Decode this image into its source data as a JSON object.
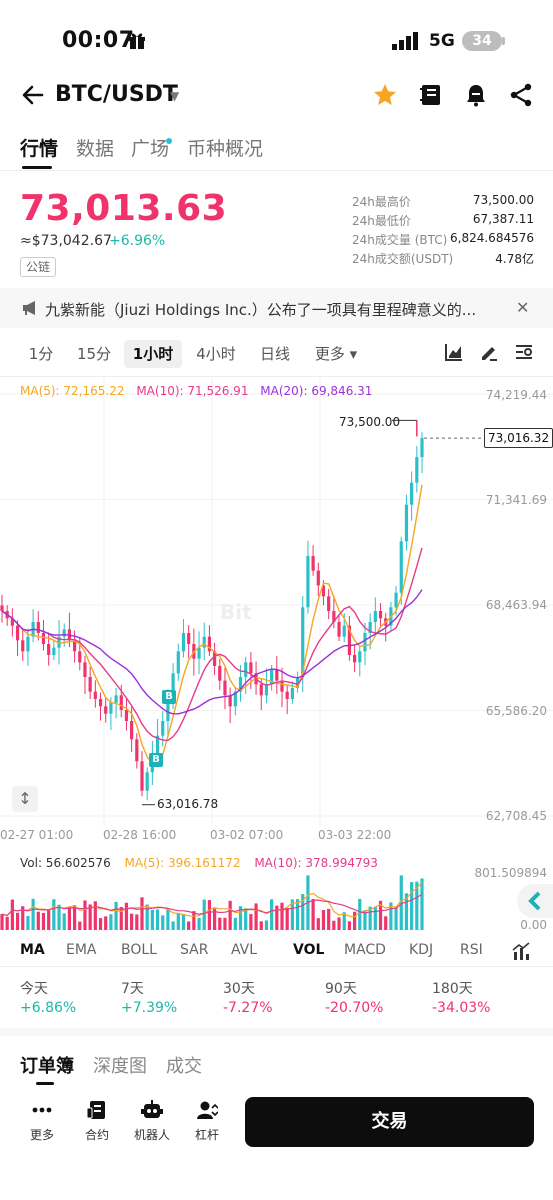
{
  "status": {
    "time": "00:07",
    "network": "5G",
    "battery": "34"
  },
  "header": {
    "pair": "BTC/USDT"
  },
  "tabs": [
    {
      "label": "行情"
    },
    {
      "label": "数据"
    },
    {
      "label": "广场"
    },
    {
      "label": "币种概况"
    }
  ],
  "ticker": {
    "price": "73,013.63",
    "fiat_price": "≈$73,042.67",
    "change_pct": "+6.96%",
    "chain_badge": "公链",
    "stats": [
      {
        "label": "24h最高价",
        "value": "73,500.00"
      },
      {
        "label": "24h最低价",
        "value": "67,387.11"
      },
      {
        "label": "24h成交量 (BTC)",
        "value": "6,824.684576"
      },
      {
        "label": "24h成交额(USDT)",
        "value": "4.78亿"
      }
    ]
  },
  "news": {
    "text": "九紫新能（Jiuzi Holdings Inc.）公布了一项具有里程碑意义的..."
  },
  "intervals": [
    {
      "label": "1分"
    },
    {
      "label": "15分"
    },
    {
      "label": "1小时"
    },
    {
      "label": "4小时"
    },
    {
      "label": "日线"
    },
    {
      "label": "更多 ▾"
    }
  ],
  "chart": {
    "ma5": "MA(5): 72,165.22",
    "ma10": "MA(10): 71,526.91",
    "ma20": "MA(20): 69,846.31",
    "y_ticks": [
      "74,219.44",
      "71,341.69",
      "68,463.94",
      "65,586.20",
      "62,708.45"
    ],
    "x_ticks": [
      "02-27 01:00",
      "02-28 16:00",
      "03-02 07:00",
      "03-03 22:00"
    ],
    "high_label": "73,500.00",
    "low_label": "63,016.78",
    "current_label": "73,016.32",
    "buy_marker": "B",
    "watermark": "Bit",
    "colors": {
      "up": "#2bc0c8",
      "down": "#f0336a",
      "ma5": "#f5a623",
      "ma10": "#e8398c",
      "ma20": "#9b30d9"
    }
  },
  "chart_data": {
    "type": "candlestick",
    "ylim": [
      62708.45,
      74219.44
    ],
    "high": 73500.0,
    "low": 63016.78,
    "current": 73016.32,
    "close_series": [
      68300,
      68100,
      67900,
      67500,
      67200,
      67600,
      68000,
      67700,
      67400,
      67100,
      67300,
      67600,
      67800,
      67500,
      67200,
      66900,
      66500,
      66100,
      65900,
      65700,
      65500,
      65800,
      66000,
      65600,
      65300,
      64800,
      64200,
      63400,
      63900,
      64400,
      64900,
      65300,
      65900,
      66600,
      67200,
      67700,
      67400,
      67000,
      67300,
      67600,
      67200,
      66800,
      66400,
      66000,
      65700,
      66100,
      66500,
      66900,
      66600,
      66300,
      66000,
      66300,
      66700,
      66400,
      66100,
      65900,
      66200,
      66500,
      68400,
      69800,
      69400,
      69000,
      68700,
      68300,
      68000,
      67600,
      67900,
      67100,
      66900,
      67200,
      67700,
      68000,
      68300,
      68100,
      67900,
      68400,
      68800,
      70200,
      71200,
      71800,
      72500,
      73016
    ],
    "volume": {
      "legend": "Vol: 56.602576",
      "ma5": "MA(5): 396.161172",
      "ma10": "MA(10): 378.994793",
      "max_label": "801.509894",
      "min_label": "0.00"
    }
  },
  "indicators": [
    {
      "label": "MA"
    },
    {
      "label": "EMA"
    },
    {
      "label": "BOLL"
    },
    {
      "label": "SAR"
    },
    {
      "label": "AVL"
    },
    {
      "label": "VOL"
    },
    {
      "label": "MACD"
    },
    {
      "label": "KDJ"
    },
    {
      "label": "RSI"
    }
  ],
  "performance": [
    {
      "label": "今天",
      "value": "+6.86%",
      "color": "#1fb7a9"
    },
    {
      "label": "7天",
      "value": "+7.39%",
      "color": "#1fb7a9"
    },
    {
      "label": "30天",
      "value": "-7.27%",
      "color": "#f0336a"
    },
    {
      "label": "90天",
      "value": "-20.70%",
      "color": "#f0336a"
    },
    {
      "label": "180天",
      "value": "-34.03%",
      "color": "#f0336a"
    }
  ],
  "book_tabs": [
    {
      "label": "订单簿"
    },
    {
      "label": "深度图"
    },
    {
      "label": "成交"
    }
  ],
  "bottom": {
    "items": [
      {
        "label": "更多"
      },
      {
        "label": "合约"
      },
      {
        "label": "机器人"
      },
      {
        "label": "杠杆"
      }
    ],
    "trade_label": "交易"
  }
}
